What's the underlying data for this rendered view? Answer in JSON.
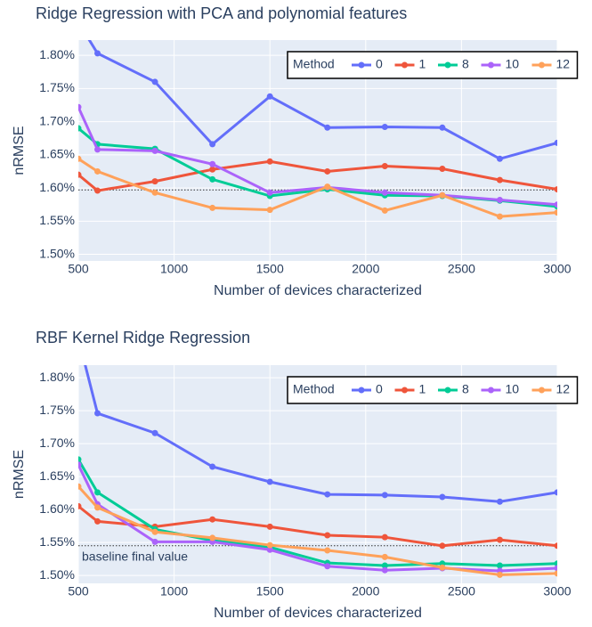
{
  "chart_data": [
    {
      "type": "line",
      "title": "Ridge Regression with PCA and polynomial features",
      "x_label": "Number of devices characterized",
      "y_label": "nRMSE",
      "legend_title": "Method",
      "legend_position": "top-right",
      "grid": true,
      "x": [
        500,
        600,
        900,
        1200,
        1500,
        1800,
        2100,
        2400,
        2700,
        3000
      ],
      "series": [
        {
          "name": "0",
          "color": "#636efa",
          "values": [
            1.85,
            1.803,
            1.76,
            1.666,
            1.738,
            1.691,
            1.692,
            1.691,
            1.644,
            1.668
          ]
        },
        {
          "name": "1",
          "color": "#ef553b",
          "values": [
            1.62,
            1.596,
            1.61,
            1.628,
            1.64,
            1.625,
            1.633,
            1.629,
            1.612,
            1.598
          ]
        },
        {
          "name": "8",
          "color": "#00cc96",
          "values": [
            1.69,
            1.666,
            1.659,
            1.613,
            1.588,
            1.598,
            1.589,
            1.588,
            1.581,
            1.572
          ]
        },
        {
          "name": "10",
          "color": "#ab63fa",
          "values": [
            1.722,
            1.658,
            1.656,
            1.636,
            1.593,
            1.601,
            1.593,
            1.589,
            1.582,
            1.575
          ]
        },
        {
          "name": "12",
          "color": "#ffa15a",
          "values": [
            1.644,
            1.625,
            1.593,
            1.57,
            1.567,
            1.602,
            1.566,
            1.589,
            1.557,
            1.563
          ]
        }
      ],
      "baseline": 1.597,
      "xlim": [
        500,
        3000
      ],
      "xticks": [
        500,
        1000,
        1500,
        2000,
        2500,
        3000
      ],
      "ylim": [
        1.49,
        1.823
      ],
      "yticks": [
        {
          "value": 1.5,
          "label": "1.50%"
        },
        {
          "value": 1.55,
          "label": "1.55%"
        },
        {
          "value": 1.6,
          "label": "1.60%"
        },
        {
          "value": 1.65,
          "label": "1.65%"
        },
        {
          "value": 1.7,
          "label": "1.70%"
        },
        {
          "value": 1.75,
          "label": "1.75%"
        },
        {
          "value": 1.8,
          "label": "1.80%"
        }
      ]
    },
    {
      "type": "line",
      "title": "RBF Kernel Ridge Regression",
      "x_label": "Number of devices characterized",
      "y_label": "nRMSE",
      "legend_title": "Method",
      "legend_position": "top-right",
      "grid": true,
      "x": [
        500,
        600,
        900,
        1200,
        1500,
        1800,
        2100,
        2400,
        2700,
        3000
      ],
      "series": [
        {
          "name": "0",
          "color": "#636efa",
          "values": [
            1.86,
            1.746,
            1.716,
            1.665,
            1.642,
            1.623,
            1.622,
            1.619,
            1.612,
            1.626
          ]
        },
        {
          "name": "1",
          "color": "#ef553b",
          "values": [
            1.605,
            1.582,
            1.574,
            1.585,
            1.574,
            1.561,
            1.558,
            1.545,
            1.554,
            1.545
          ]
        },
        {
          "name": "8",
          "color": "#00cc96",
          "values": [
            1.676,
            1.626,
            1.57,
            1.553,
            1.543,
            1.519,
            1.515,
            1.518,
            1.515,
            1.518
          ]
        },
        {
          "name": "10",
          "color": "#ab63fa",
          "values": [
            1.668,
            1.608,
            1.551,
            1.551,
            1.539,
            1.514,
            1.508,
            1.511,
            1.507,
            1.511
          ]
        },
        {
          "name": "12",
          "color": "#ffa15a",
          "values": [
            1.635,
            1.603,
            1.566,
            1.557,
            1.546,
            1.538,
            1.528,
            1.512,
            1.501,
            1.503
          ]
        }
      ],
      "baseline": 1.545,
      "annotation": "baseline final value",
      "xlim": [
        500,
        3000
      ],
      "xticks": [
        500,
        1000,
        1500,
        2000,
        2500,
        3000
      ],
      "ylim": [
        1.488,
        1.819
      ],
      "yticks": [
        {
          "value": 1.5,
          "label": "1.50%"
        },
        {
          "value": 1.55,
          "label": "1.55%"
        },
        {
          "value": 1.6,
          "label": "1.60%"
        },
        {
          "value": 1.65,
          "label": "1.65%"
        },
        {
          "value": 1.7,
          "label": "1.70%"
        },
        {
          "value": 1.75,
          "label": "1.75%"
        },
        {
          "value": 1.8,
          "label": "1.80%"
        }
      ]
    }
  ]
}
